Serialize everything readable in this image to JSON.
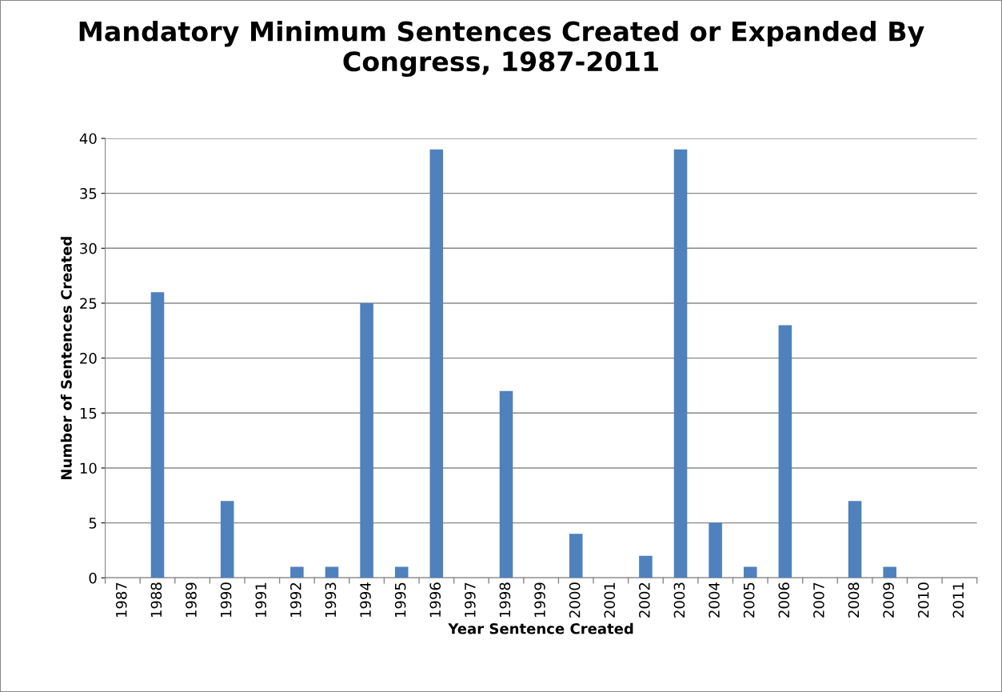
{
  "chart_data": {
    "type": "bar",
    "title": "Mandatory Minimum Sentences Created or Expanded By Congress, 1987-2011",
    "xlabel": "Year Sentence Created",
    "ylabel": "Number of Sentences Created",
    "categories": [
      "1987",
      "1988",
      "1989",
      "1990",
      "1991",
      "1992",
      "1993",
      "1994",
      "1995",
      "1996",
      "1997",
      "1998",
      "1999",
      "2000",
      "2001",
      "2002",
      "2003",
      "2004",
      "2005",
      "2006",
      "2007",
      "2008",
      "2009",
      "2010",
      "2011"
    ],
    "values": [
      0,
      26,
      0,
      7,
      0,
      1,
      1,
      25,
      1,
      39,
      0,
      17,
      0,
      4,
      0,
      2,
      39,
      5,
      1,
      23,
      0,
      7,
      1,
      0,
      0
    ],
    "color": "#4f81bd",
    "ylim": [
      0,
      40
    ],
    "yticks": [
      0,
      5,
      10,
      15,
      20,
      25,
      30,
      35,
      40
    ],
    "grid": "y",
    "legend": false
  }
}
